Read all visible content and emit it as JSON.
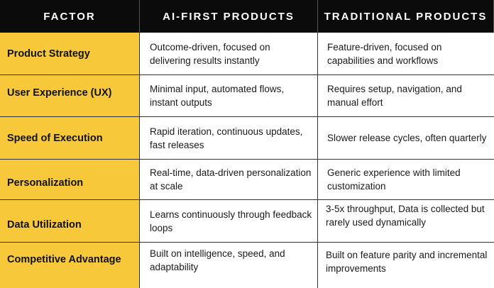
{
  "header": {
    "factor": "FACTOR",
    "ai_first": "AI-FIRST PRODUCTS",
    "traditional": "TRADITIONAL PRODUCTS"
  },
  "rows": [
    {
      "factor": "Product Strategy",
      "ai_first": "Outcome-driven, focused on delivering results instantly",
      "traditional": "Feature-driven, focused on capabilities and workflows"
    },
    {
      "factor": "User Experience (UX)",
      "ai_first": "Minimal input, automated flows, instant outputs",
      "traditional": "Requires setup, navigation, and manual effort"
    },
    {
      "factor": "Speed of Execution",
      "ai_first": "Rapid iteration, continuous updates, fast releases",
      "traditional": "Slower release cycles, often quarterly"
    },
    {
      "factor": "Personalization",
      "ai_first": "Real-time, data-driven personalization at scale",
      "traditional": "Generic experience with limited customization"
    },
    {
      "factor": "Data Utilization",
      "ai_first": "Learns continuously through feedback loops",
      "traditional": "3-5x throughput, Data is collected but rarely used dynamically"
    },
    {
      "factor": "Competitive Advantage",
      "ai_first": "Built on intelligence, speed, and adaptability",
      "traditional": "Built on feature parity and incremental improvements"
    }
  ]
}
